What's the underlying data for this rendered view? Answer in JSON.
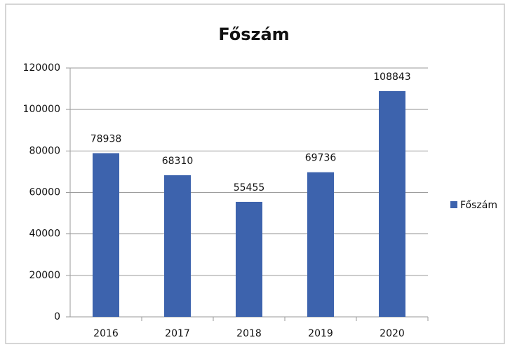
{
  "chart_data": {
    "type": "bar",
    "title": "Főszám",
    "categories": [
      "2016",
      "2017",
      "2018",
      "2019",
      "2020"
    ],
    "series": [
      {
        "name": "Főszám",
        "color": "#3d63ad",
        "values": [
          78938,
          68310,
          55455,
          69736,
          108843
        ]
      }
    ],
    "ylim": [
      0,
      120000
    ],
    "yticks": [
      0,
      20000,
      40000,
      60000,
      80000,
      100000,
      120000
    ],
    "grid": true,
    "legend": "right"
  }
}
